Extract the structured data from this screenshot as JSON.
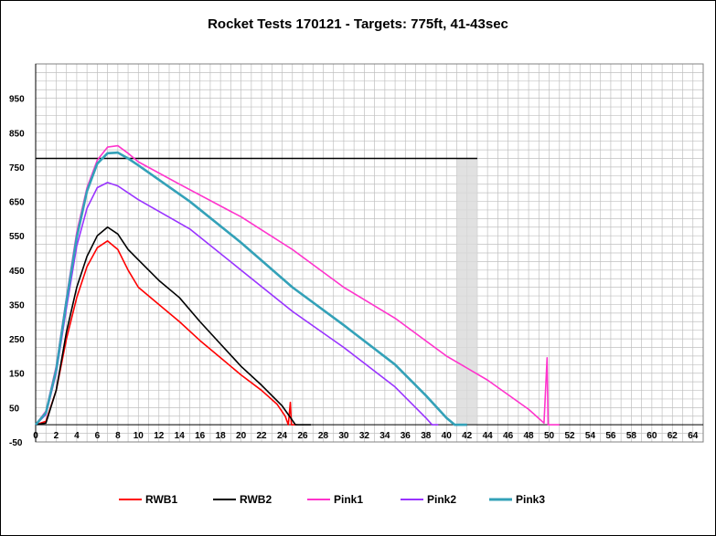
{
  "chart_data": {
    "type": "line",
    "title": "Rocket Tests 170121 - Targets: 775ft, 41-43sec",
    "xlabel": "",
    "ylabel": "",
    "xlim": [
      0,
      65
    ],
    "ylim": [
      -50,
      1050
    ],
    "x_ticks": [
      0,
      2,
      4,
      6,
      8,
      10,
      12,
      14,
      16,
      18,
      20,
      22,
      24,
      26,
      28,
      30,
      32,
      34,
      36,
      38,
      40,
      42,
      44,
      46,
      48,
      50,
      52,
      54,
      56,
      58,
      60,
      62,
      64
    ],
    "y_ticks": [
      -50,
      50,
      150,
      250,
      350,
      450,
      550,
      650,
      750,
      850,
      950
    ],
    "grid": true,
    "legend_position": "bottom",
    "target_altitude": 775,
    "target_time_window": [
      41,
      43
    ],
    "series": [
      {
        "name": "RWB1",
        "color": "#ff0000",
        "points": [
          [
            0,
            0
          ],
          [
            1,
            10
          ],
          [
            2,
            100
          ],
          [
            3,
            250
          ],
          [
            4,
            370
          ],
          [
            5,
            460
          ],
          [
            6,
            515
          ],
          [
            7,
            535
          ],
          [
            8,
            510
          ],
          [
            9,
            450
          ],
          [
            10,
            400
          ],
          [
            12,
            350
          ],
          [
            14,
            300
          ],
          [
            16,
            245
          ],
          [
            18,
            195
          ],
          [
            20,
            145
          ],
          [
            22,
            100
          ],
          [
            23.5,
            60
          ],
          [
            24.3,
            25
          ],
          [
            24.6,
            0
          ],
          [
            24.8,
            65
          ],
          [
            24.9,
            0
          ],
          [
            25.5,
            0
          ]
        ]
      },
      {
        "name": "RWB2",
        "color": "#000000",
        "points": [
          [
            0,
            0
          ],
          [
            1,
            5
          ],
          [
            2,
            100
          ],
          [
            3,
            270
          ],
          [
            4,
            400
          ],
          [
            5,
            490
          ],
          [
            6,
            550
          ],
          [
            7,
            575
          ],
          [
            8,
            555
          ],
          [
            9,
            510
          ],
          [
            10,
            480
          ],
          [
            12,
            420
          ],
          [
            14,
            370
          ],
          [
            16,
            300
          ],
          [
            18,
            235
          ],
          [
            20,
            170
          ],
          [
            22,
            115
          ],
          [
            24,
            55
          ],
          [
            25.3,
            0
          ],
          [
            26.8,
            0
          ]
        ]
      },
      {
        "name": "Pink1",
        "color": "#ff33cc",
        "points": [
          [
            0,
            0
          ],
          [
            1,
            40
          ],
          [
            2,
            170
          ],
          [
            3,
            370
          ],
          [
            4,
            560
          ],
          [
            5,
            690
          ],
          [
            6,
            770
          ],
          [
            7,
            808
          ],
          [
            8,
            812
          ],
          [
            9,
            790
          ],
          [
            10,
            765
          ],
          [
            14,
            700
          ],
          [
            20,
            605
          ],
          [
            25,
            510
          ],
          [
            30,
            400
          ],
          [
            35,
            310
          ],
          [
            40,
            200
          ],
          [
            44,
            130
          ],
          [
            48,
            45
          ],
          [
            49.5,
            5
          ],
          [
            49.8,
            195
          ],
          [
            49.9,
            0
          ],
          [
            51,
            0
          ]
        ]
      },
      {
        "name": "Pink2",
        "color": "#9933ff",
        "points": [
          [
            0,
            0
          ],
          [
            1,
            30
          ],
          [
            2,
            150
          ],
          [
            3,
            340
          ],
          [
            4,
            520
          ],
          [
            5,
            630
          ],
          [
            6,
            690
          ],
          [
            7,
            705
          ],
          [
            8,
            695
          ],
          [
            10,
            655
          ],
          [
            15,
            570
          ],
          [
            20,
            450
          ],
          [
            25,
            330
          ],
          [
            30,
            225
          ],
          [
            35,
            110
          ],
          [
            38,
            20
          ],
          [
            38.6,
            0
          ],
          [
            39.2,
            0
          ]
        ]
      },
      {
        "name": "Pink3",
        "color": "#33a1b8",
        "points": [
          [
            0,
            0
          ],
          [
            1,
            35
          ],
          [
            2,
            160
          ],
          [
            3,
            360
          ],
          [
            4,
            545
          ],
          [
            5,
            680
          ],
          [
            6,
            760
          ],
          [
            7,
            790
          ],
          [
            8,
            792
          ],
          [
            9,
            775
          ],
          [
            10,
            755
          ],
          [
            15,
            650
          ],
          [
            20,
            530
          ],
          [
            25,
            400
          ],
          [
            30,
            290
          ],
          [
            35,
            175
          ],
          [
            38,
            85
          ],
          [
            40,
            20
          ],
          [
            40.8,
            0
          ],
          [
            42,
            0
          ]
        ]
      }
    ]
  },
  "colors": {
    "plot_bg": "#ffffff",
    "grid": "#c0c0c0",
    "target_line": "#000000",
    "target_window": "#d9d9d9"
  }
}
